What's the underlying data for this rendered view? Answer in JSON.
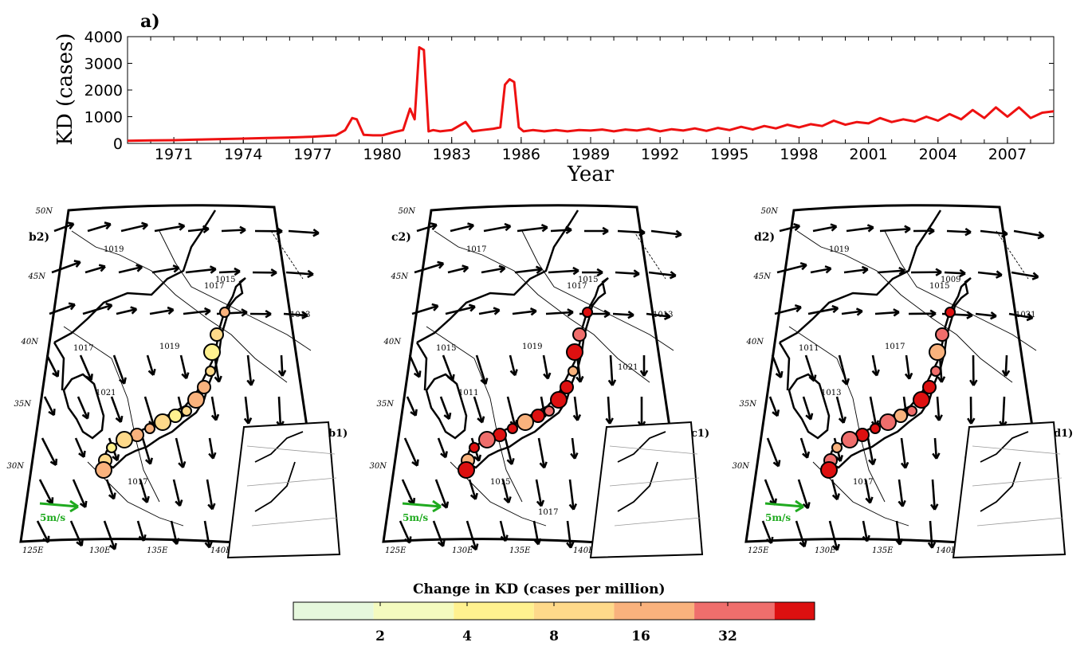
{
  "panel_a": {
    "tag": "a)",
    "ylabel": "KD (cases)",
    "xlabel": "Year",
    "yticks": [
      "0",
      "1000",
      "2000",
      "3000",
      "4000"
    ],
    "xticks": [
      "1971",
      "1974",
      "1977",
      "1980",
      "1983",
      "1986",
      "1989",
      "1992",
      "1995",
      "1998",
      "2001",
      "2004",
      "2007"
    ]
  },
  "maps": [
    {
      "tag": "b2)",
      "inset_tag": "b1)",
      "lat_labels": [
        "50N",
        "45N",
        "40N",
        "35N",
        "30N"
      ],
      "lon_labels": [
        "125E",
        "130E",
        "135E",
        "140E"
      ],
      "isobars": [
        "1019",
        "1015",
        "1017",
        "1021",
        "1019",
        "1013",
        "1017",
        "1017"
      ],
      "ref_arrow": "5m/s"
    },
    {
      "tag": "c2)",
      "inset_tag": "c1)",
      "lat_labels": [
        "50N",
        "45N",
        "40N",
        "35N",
        "30N"
      ],
      "lon_labels": [
        "125E",
        "130E",
        "135E",
        "140E"
      ],
      "isobars": [
        "1017",
        "1015",
        "1015",
        "1011",
        "1019",
        "1013",
        "1017",
        "1015",
        "1021",
        "1017"
      ],
      "ref_arrow": "5m/s"
    },
    {
      "tag": "d2)",
      "inset_tag": "d1)",
      "lat_labels": [
        "50N",
        "45N",
        "40N",
        "35N",
        "30N"
      ],
      "lon_labels": [
        "125E",
        "130E",
        "135E",
        "140E"
      ],
      "isobars": [
        "1019",
        "1009",
        "1011",
        "1013",
        "1017",
        "1021",
        "1015",
        "1017"
      ],
      "ref_arrow": "5m/s"
    }
  ],
  "colorbar": {
    "title": "Change in KD (cases per million)",
    "ticks": [
      "2",
      "4",
      "8",
      "16",
      "32"
    ],
    "colors": [
      "#e6f8dd",
      "#f4fbbf",
      "#fff18f",
      "#fed98a",
      "#f9b27d",
      "#ef6e6c",
      "#dd1010"
    ]
  },
  "chart_data": {
    "type": "line",
    "title": "",
    "xlabel": "Year",
    "ylabel": "KD (cases)",
    "xlim": [
      1969.0,
      2009.0
    ],
    "ylim": [
      0,
      4000
    ],
    "grid": false,
    "color": "#ee1111",
    "series": [
      {
        "x": [
          1969.0,
          1970.0,
          1971.0,
          1972.0,
          1973.0,
          1974.0,
          1975.0,
          1976.0,
          1977.0,
          1978.0,
          1978.4,
          1978.7,
          1978.9,
          1979.2,
          1979.6,
          1980.0,
          1980.5,
          1980.9,
          1981.2,
          1981.4,
          1981.6,
          1981.8,
          1982.0,
          1982.2,
          1982.5,
          1983.0,
          1983.6,
          1983.9,
          1984.3,
          1984.8,
          1985.1,
          1985.3,
          1985.5,
          1985.7,
          1985.9,
          1986.1,
          1986.5,
          1987.0,
          1987.5,
          1988.0,
          1988.5,
          1989.0,
          1989.5,
          1990.0,
          1990.5,
          1991.0,
          1991.5,
          1992.0,
          1992.5,
          1993.0,
          1993.5,
          1994.0,
          1994.5,
          1995.0,
          1995.5,
          1996.0,
          1996.5,
          1997.0,
          1997.5,
          1998.0,
          1998.5,
          1999.0,
          1999.5,
          2000.0,
          2000.5,
          2001.0,
          2001.5,
          2002.0,
          2002.5,
          2003.0,
          2003.5,
          2004.0,
          2004.5,
          2005.0,
          2005.5,
          2006.0,
          2006.5,
          2007.0,
          2007.5,
          2008.0,
          2008.5,
          2009.0
        ],
        "y": [
          100,
          110,
          120,
          140,
          160,
          180,
          200,
          220,
          250,
          300,
          500,
          950,
          900,
          320,
          300,
          300,
          420,
          500,
          1300,
          900,
          3600,
          3500,
          450,
          500,
          450,
          500,
          800,
          450,
          500,
          550,
          600,
          2200,
          2400,
          2300,
          600,
          450,
          500,
          450,
          500,
          450,
          500,
          480,
          520,
          450,
          520,
          480,
          550,
          450,
          530,
          480,
          560,
          470,
          580,
          500,
          620,
          520,
          650,
          560,
          700,
          600,
          720,
          650,
          850,
          700,
          800,
          750,
          950,
          800,
          900,
          820,
          1000,
          850,
          1100,
          900,
          1250,
          950,
          1350,
          1000,
          1350,
          950,
          1150,
          1200
        ]
      }
    ]
  }
}
